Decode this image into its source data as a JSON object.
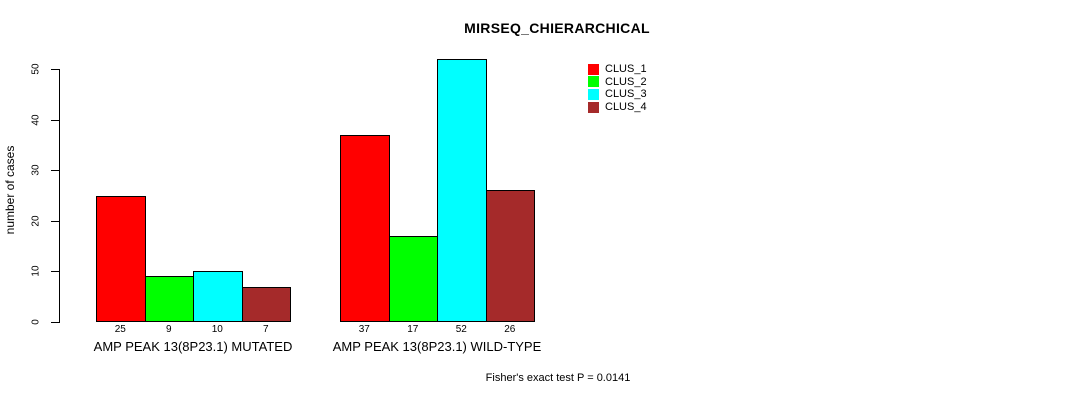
{
  "figure": {
    "title": "MIRSEQ_CHIERARCHICAL",
    "y_axis_label": "number of cases",
    "footnote": "Fisher's exact test P = 0.0141"
  },
  "chart_data": {
    "type": "bar",
    "title": "MIRSEQ_CHIERARCHICAL",
    "xlabel": "",
    "ylabel": "number of cases",
    "ylim": [
      0,
      52
    ],
    "yticks": [
      0,
      10,
      20,
      30,
      40,
      50
    ],
    "grid": false,
    "legend_position": "top-right",
    "bar_outline_color": "#000000",
    "text_color": "#000000",
    "background_color": "#ffffff",
    "categories": [
      "AMP PEAK 13(8P23.1) MUTATED",
      "AMP PEAK 13(8P23.1) WILD-TYPE"
    ],
    "series": [
      {
        "name": "CLUS_1",
        "color": "#FF0000",
        "values": [
          25,
          37
        ]
      },
      {
        "name": "CLUS_2",
        "color": "#00FF00",
        "values": [
          9,
          17
        ]
      },
      {
        "name": "CLUS_3",
        "color": "#00FFFF",
        "values": [
          10,
          52
        ]
      },
      {
        "name": "CLUS_4",
        "color": "#A52A2A",
        "values": [
          7,
          26
        ]
      }
    ],
    "show_bar_values": true,
    "annotation": "Fisher's exact test P = 0.0141"
  }
}
